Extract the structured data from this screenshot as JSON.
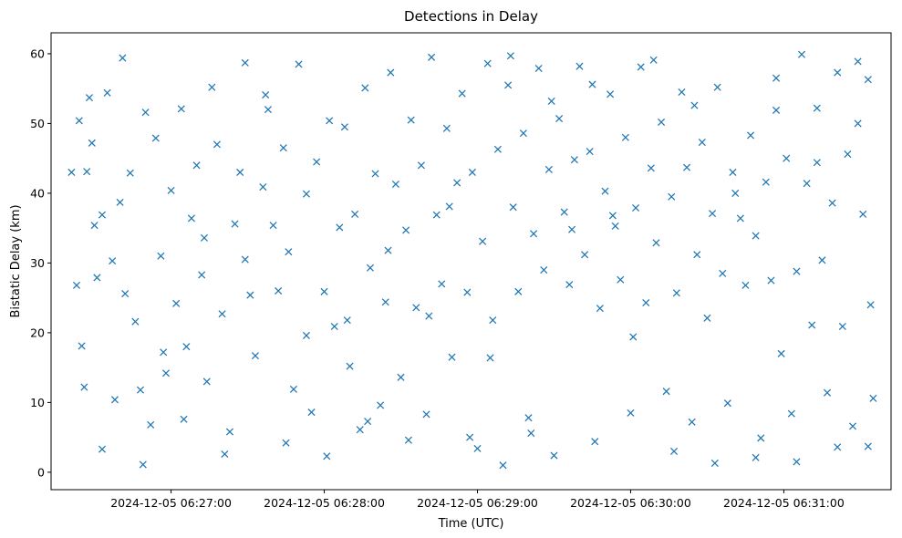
{
  "chart_data": {
    "type": "scatter",
    "title": "Detections in Delay",
    "xlabel": "Time (UTC)",
    "ylabel": "Bistatic Delay (km)",
    "marker": "x",
    "color": "#1f77b4",
    "grid": false,
    "xlim": [
      "2024-12-05 06:26:13",
      "2024-12-05 06:31:42"
    ],
    "ylim": [
      -2.5,
      63
    ],
    "x_ticks": [
      "2024-12-05 06:27:00",
      "2024-12-05 06:28:00",
      "2024-12-05 06:29:00",
      "2024-12-05 06:30:00",
      "2024-12-05 06:31:00"
    ],
    "y_ticks": [
      0,
      10,
      20,
      30,
      40,
      50,
      60
    ],
    "series": [
      {
        "points": [
          [
            "06:26:21",
            43.0
          ],
          [
            "06:26:23",
            26.8
          ],
          [
            "06:26:24",
            50.4
          ],
          [
            "06:26:26",
            12.2
          ],
          [
            "06:26:27",
            43.1
          ],
          [
            "06:26:28",
            53.7
          ],
          [
            "06:26:29",
            47.2
          ],
          [
            "06:26:30",
            35.4
          ],
          [
            "06:26:31",
            27.9
          ],
          [
            "06:26:33",
            36.9
          ],
          [
            "06:26:35",
            54.4
          ],
          [
            "06:26:37",
            30.3
          ],
          [
            "06:26:38",
            10.4
          ],
          [
            "06:26:40",
            38.7
          ],
          [
            "06:26:42",
            25.6
          ],
          [
            "06:26:44",
            42.9
          ],
          [
            "06:26:46",
            21.6
          ],
          [
            "06:26:48",
            11.8
          ],
          [
            "06:26:50",
            51.6
          ],
          [
            "06:26:52",
            6.8
          ],
          [
            "06:26:54",
            47.9
          ],
          [
            "06:26:56",
            31.0
          ],
          [
            "06:26:58",
            14.2
          ],
          [
            "06:27:00",
            40.4
          ],
          [
            "06:27:02",
            24.2
          ],
          [
            "06:27:04",
            52.1
          ],
          [
            "06:27:06",
            18.0
          ],
          [
            "06:27:08",
            36.4
          ],
          [
            "06:27:10",
            44.0
          ],
          [
            "06:27:12",
            28.3
          ],
          [
            "06:27:14",
            13.0
          ],
          [
            "06:27:16",
            55.2
          ],
          [
            "06:27:18",
            47.0
          ],
          [
            "06:27:20",
            22.7
          ],
          [
            "06:27:23",
            5.8
          ],
          [
            "06:27:25",
            35.6
          ],
          [
            "06:27:27",
            43.0
          ],
          [
            "06:27:29",
            58.7
          ],
          [
            "06:27:31",
            25.4
          ],
          [
            "06:27:33",
            16.7
          ],
          [
            "06:27:36",
            40.9
          ],
          [
            "06:27:38",
            52.0
          ],
          [
            "06:27:40",
            35.4
          ],
          [
            "06:27:42",
            26.0
          ],
          [
            "06:27:44",
            46.5
          ],
          [
            "06:27:46",
            31.6
          ],
          [
            "06:27:48",
            11.9
          ],
          [
            "06:27:50",
            58.5
          ],
          [
            "06:27:53",
            39.9
          ],
          [
            "06:27:55",
            8.6
          ],
          [
            "06:27:57",
            44.5
          ],
          [
            "06:28:00",
            25.9
          ],
          [
            "06:28:02",
            50.4
          ],
          [
            "06:28:04",
            20.9
          ],
          [
            "06:28:06",
            35.1
          ],
          [
            "06:28:08",
            49.5
          ],
          [
            "06:28:10",
            15.2
          ],
          [
            "06:28:12",
            37.0
          ],
          [
            "06:28:14",
            6.1
          ],
          [
            "06:28:16",
            55.1
          ],
          [
            "06:28:18",
            29.3
          ],
          [
            "06:28:20",
            42.8
          ],
          [
            "06:28:22",
            9.6
          ],
          [
            "06:28:24",
            24.4
          ],
          [
            "06:28:26",
            57.3
          ],
          [
            "06:28:28",
            41.3
          ],
          [
            "06:28:30",
            13.6
          ],
          [
            "06:28:32",
            34.7
          ],
          [
            "06:28:34",
            50.5
          ],
          [
            "06:28:36",
            23.6
          ],
          [
            "06:28:38",
            44.0
          ],
          [
            "06:28:40",
            8.3
          ],
          [
            "06:28:42",
            59.5
          ],
          [
            "06:28:44",
            36.9
          ],
          [
            "06:28:46",
            27.0
          ],
          [
            "06:28:48",
            49.3
          ],
          [
            "06:28:50",
            16.5
          ],
          [
            "06:28:52",
            41.5
          ],
          [
            "06:28:54",
            54.3
          ],
          [
            "06:28:56",
            25.8
          ],
          [
            "06:28:58",
            43.0
          ],
          [
            "06:29:00",
            3.4
          ],
          [
            "06:29:02",
            33.1
          ],
          [
            "06:29:04",
            58.6
          ],
          [
            "06:29:06",
            21.8
          ],
          [
            "06:29:08",
            46.3
          ],
          [
            "06:29:10",
            1.0
          ],
          [
            "06:29:12",
            55.5
          ],
          [
            "06:29:14",
            38.0
          ],
          [
            "06:29:16",
            25.9
          ],
          [
            "06:29:18",
            48.6
          ],
          [
            "06:29:20",
            7.8
          ],
          [
            "06:29:22",
            34.2
          ],
          [
            "06:29:24",
            57.9
          ],
          [
            "06:29:26",
            29.0
          ],
          [
            "06:29:28",
            43.4
          ],
          [
            "06:29:30",
            2.4
          ],
          [
            "06:29:32",
            50.7
          ],
          [
            "06:29:34",
            37.3
          ],
          [
            "06:29:36",
            26.9
          ],
          [
            "06:29:38",
            44.8
          ],
          [
            "06:29:40",
            58.2
          ],
          [
            "06:29:42",
            31.2
          ],
          [
            "06:29:44",
            46.0
          ],
          [
            "06:29:46",
            4.4
          ],
          [
            "06:29:48",
            23.5
          ],
          [
            "06:29:50",
            40.3
          ],
          [
            "06:29:52",
            54.2
          ],
          [
            "06:29:54",
            35.3
          ],
          [
            "06:29:56",
            27.6
          ],
          [
            "06:29:58",
            48.0
          ],
          [
            "06:30:00",
            8.5
          ],
          [
            "06:30:02",
            37.9
          ],
          [
            "06:30:04",
            58.1
          ],
          [
            "06:30:06",
            24.3
          ],
          [
            "06:30:08",
            43.6
          ],
          [
            "06:30:10",
            32.9
          ],
          [
            "06:30:12",
            50.2
          ],
          [
            "06:30:14",
            11.6
          ],
          [
            "06:30:16",
            39.5
          ],
          [
            "06:30:18",
            25.7
          ],
          [
            "06:30:20",
            54.5
          ],
          [
            "06:30:22",
            43.7
          ],
          [
            "06:30:24",
            7.2
          ],
          [
            "06:30:26",
            31.2
          ],
          [
            "06:30:28",
            47.3
          ],
          [
            "06:30:30",
            22.1
          ],
          [
            "06:30:32",
            37.1
          ],
          [
            "06:30:34",
            55.2
          ],
          [
            "06:30:36",
            28.5
          ],
          [
            "06:30:38",
            9.9
          ],
          [
            "06:30:40",
            43.0
          ],
          [
            "06:30:43",
            36.4
          ],
          [
            "06:30:45",
            26.8
          ],
          [
            "06:30:47",
            48.3
          ],
          [
            "06:30:49",
            33.9
          ],
          [
            "06:30:51",
            4.9
          ],
          [
            "06:30:53",
            41.6
          ],
          [
            "06:30:55",
            27.5
          ],
          [
            "06:30:57",
            56.5
          ],
          [
            "06:30:59",
            17.0
          ],
          [
            "06:31:01",
            45.0
          ],
          [
            "06:31:03",
            8.4
          ],
          [
            "06:31:05",
            28.8
          ],
          [
            "06:31:07",
            59.9
          ],
          [
            "06:31:09",
            41.4
          ],
          [
            "06:31:11",
            21.1
          ],
          [
            "06:31:13",
            52.2
          ],
          [
            "06:31:15",
            30.4
          ],
          [
            "06:31:17",
            11.4
          ],
          [
            "06:31:19",
            38.6
          ],
          [
            "06:31:21",
            57.3
          ],
          [
            "06:31:23",
            20.9
          ],
          [
            "06:31:25",
            45.6
          ],
          [
            "06:31:27",
            6.6
          ],
          [
            "06:31:29",
            50.0
          ],
          [
            "06:31:31",
            37.0
          ],
          [
            "06:31:33",
            56.3
          ],
          [
            "06:31:34",
            24.0
          ],
          [
            "06:31:35",
            10.6
          ],
          [
            "06:26:25",
            18.1
          ],
          [
            "06:26:33",
            3.3
          ],
          [
            "06:26:41",
            59.4
          ],
          [
            "06:26:49",
            1.1
          ],
          [
            "06:26:57",
            17.2
          ],
          [
            "06:27:05",
            7.6
          ],
          [
            "06:27:13",
            33.6
          ],
          [
            "06:27:21",
            2.6
          ],
          [
            "06:27:29",
            30.5
          ],
          [
            "06:27:37",
            54.1
          ],
          [
            "06:27:45",
            4.2
          ],
          [
            "06:27:53",
            19.6
          ],
          [
            "06:28:01",
            2.3
          ],
          [
            "06:28:09",
            21.8
          ],
          [
            "06:28:17",
            7.3
          ],
          [
            "06:28:25",
            31.8
          ],
          [
            "06:28:33",
            4.6
          ],
          [
            "06:28:41",
            22.4
          ],
          [
            "06:28:49",
            38.1
          ],
          [
            "06:28:57",
            5.0
          ],
          [
            "06:29:05",
            16.4
          ],
          [
            "06:29:13",
            59.7
          ],
          [
            "06:29:21",
            5.6
          ],
          [
            "06:29:29",
            53.2
          ],
          [
            "06:29:37",
            34.8
          ],
          [
            "06:29:45",
            55.6
          ],
          [
            "06:29:53",
            36.8
          ],
          [
            "06:30:01",
            19.4
          ],
          [
            "06:30:09",
            59.1
          ],
          [
            "06:30:17",
            3.0
          ],
          [
            "06:30:25",
            52.6
          ],
          [
            "06:30:33",
            1.3
          ],
          [
            "06:30:41",
            40.0
          ],
          [
            "06:30:49",
            2.1
          ],
          [
            "06:30:57",
            51.9
          ],
          [
            "06:31:05",
            1.5
          ],
          [
            "06:31:13",
            44.4
          ],
          [
            "06:31:21",
            3.6
          ],
          [
            "06:31:29",
            58.9
          ],
          [
            "06:31:33",
            3.7
          ]
        ]
      }
    ]
  }
}
